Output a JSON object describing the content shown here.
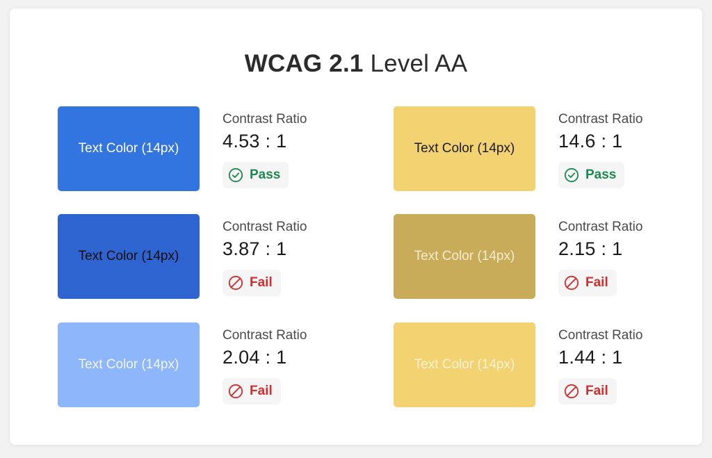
{
  "title": {
    "bold": "WCAG 2.1",
    "light": "Level AA"
  },
  "contrast_caption": "Contrast Ratio",
  "swatches": [
    {
      "text": "Text Color (14px)",
      "bg": "#3375e0",
      "fg": "#ffffff",
      "ratio": "4.53 : 1",
      "status": "Pass",
      "result": "pass"
    },
    {
      "text": "Text Color (14px)",
      "bg": "#f3d371",
      "fg": "#1a1a1a",
      "ratio": "14.6 : 1",
      "status": "Pass",
      "result": "pass"
    },
    {
      "text": "Text Color (14px)",
      "bg": "#2e64cf",
      "fg": "#0d0d0d",
      "ratio": "3.87 : 1",
      "status": "Fail",
      "result": "fail"
    },
    {
      "text": "Text Color (14px)",
      "bg": "#c9ac5a",
      "fg": "#f6ecd0",
      "ratio": "2.15 : 1",
      "status": "Fail",
      "result": "fail"
    },
    {
      "text": "Text Color (14px)",
      "bg": "#8db6fb",
      "fg": "#f2f6ff",
      "ratio": "2.04 : 1",
      "status": "Fail",
      "result": "fail"
    },
    {
      "text": "Text Color (14px)",
      "bg": "#f3d371",
      "fg": "#fbf2d6",
      "ratio": "1.44 : 1",
      "status": "Fail",
      "result": "fail"
    }
  ],
  "icons": {
    "pass": "check-circle-icon",
    "fail": "prohibited-icon"
  }
}
